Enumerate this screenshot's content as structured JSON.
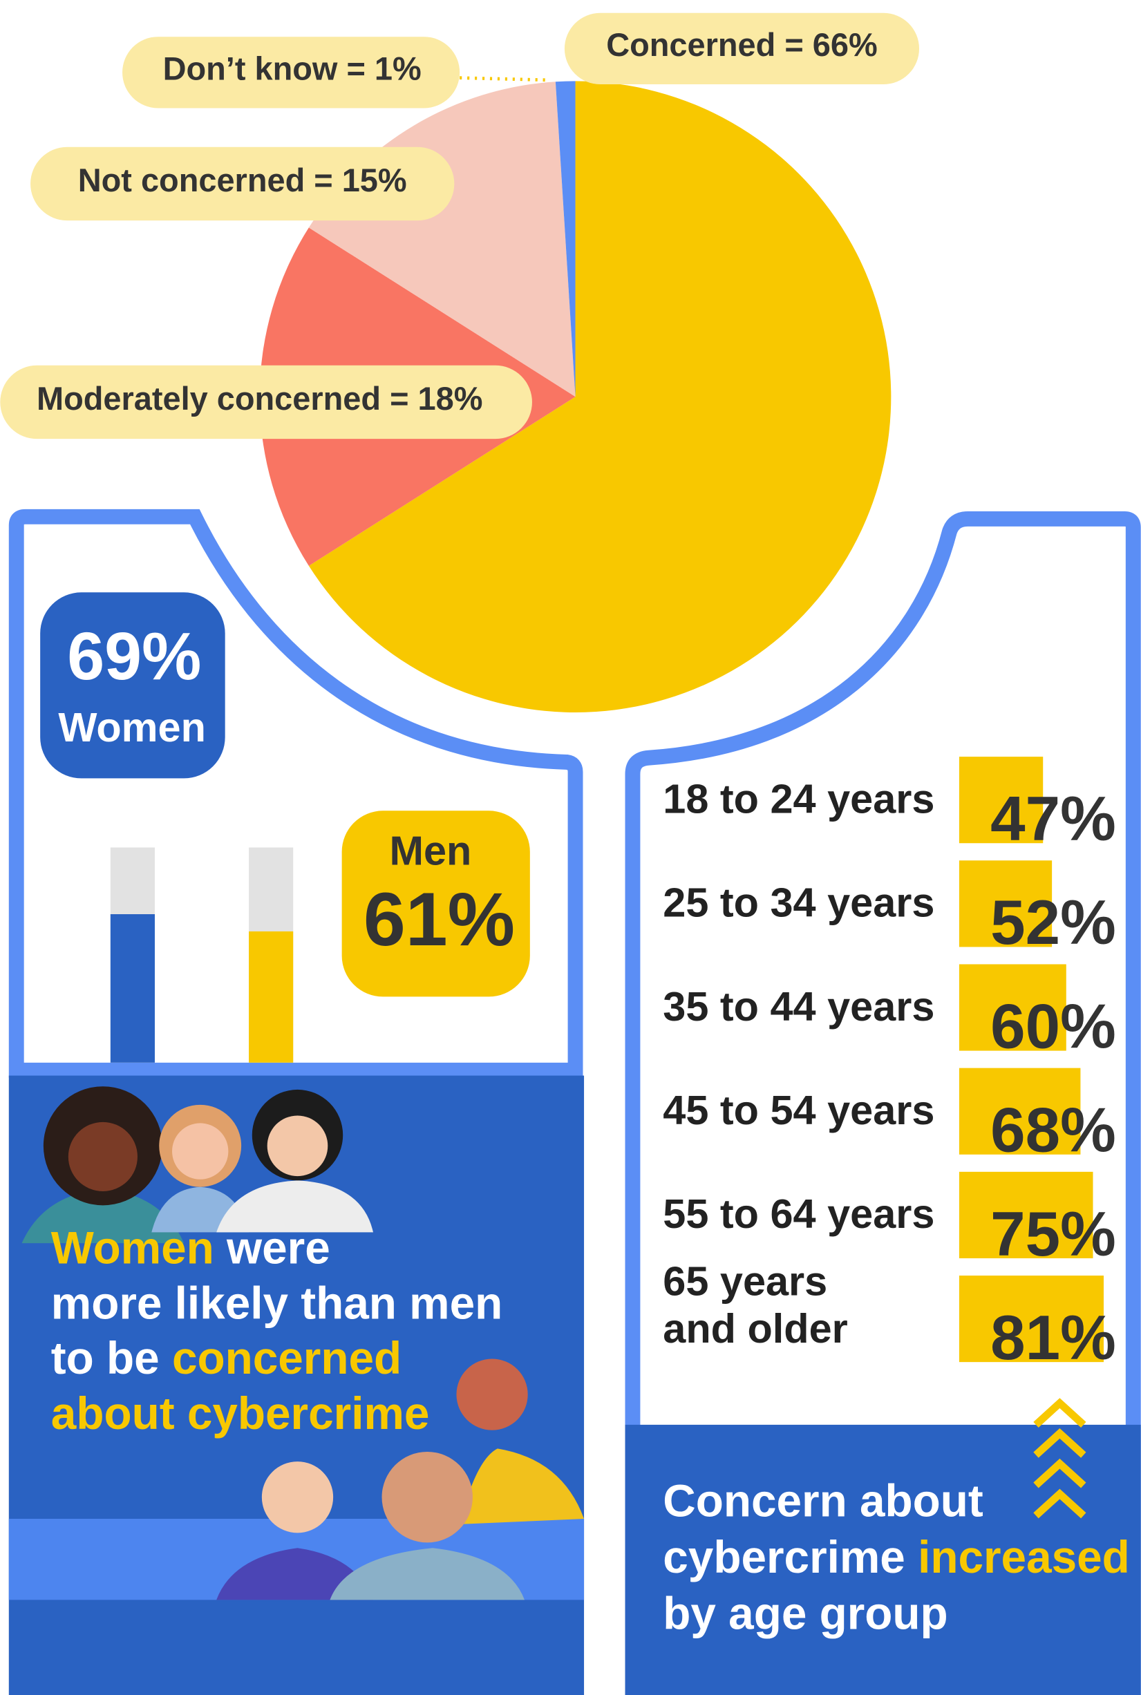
{
  "chart_data": [
    {
      "type": "pie",
      "values": [
        66,
        18,
        15,
        1
      ],
      "value_labels": [
        "Concerned = 66%",
        "Moderately concerned = 18%",
        "Not concerned = 15%",
        "Don’t know = 1%"
      ],
      "colors": [
        "#f8c800",
        "#f97563",
        "#f6c8bb",
        "#5b8ef5"
      ]
    },
    {
      "type": "bar",
      "categories": [
        "Women",
        "Men"
      ],
      "values": [
        69,
        61
      ],
      "value_labels": [
        "69%",
        "61%"
      ],
      "colors": [
        "#2a62c2",
        "#f8c800"
      ],
      "ylim": [
        0,
        100
      ]
    },
    {
      "type": "hbar",
      "categories": [
        "18 to 24 years",
        "25 to 34 years",
        "35 to 44 years",
        "45 to 54 years",
        "55 to 64 years",
        "65 years\nand older"
      ],
      "values": [
        47,
        52,
        60,
        68,
        75,
        81
      ],
      "value_labels": [
        "47%",
        "52%",
        "60%",
        "68%",
        "75%",
        "81%"
      ],
      "color": "#f8c800",
      "xlim": [
        0,
        100
      ]
    }
  ],
  "captions": {
    "women": [
      [
        {
          "text": "Women",
          "highlight": true
        },
        {
          "text": " were",
          "highlight": false
        }
      ],
      [
        {
          "text": "more likely than men",
          "highlight": false
        }
      ],
      [
        {
          "text": "to be ",
          "highlight": false
        },
        {
          "text": "concerned",
          "highlight": true
        }
      ],
      [
        {
          "text": "about cybercrime",
          "highlight": true
        }
      ]
    ],
    "age": [
      [
        {
          "text": "Concern about",
          "highlight": false
        }
      ],
      [
        {
          "text": "cybercrime ",
          "highlight": false
        },
        {
          "text": "increased",
          "highlight": true
        }
      ],
      [
        {
          "text": "by age group",
          "highlight": false
        }
      ]
    ]
  }
}
